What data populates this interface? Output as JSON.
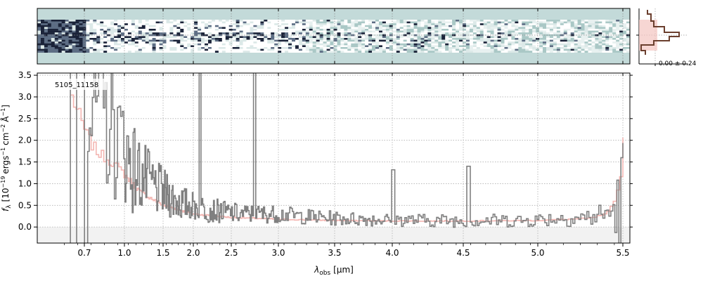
{
  "chart_data": [
    {
      "type": "heatmap",
      "panel": "2d-spectrum",
      "colors": {
        "background": "#c3dad9",
        "dark": "#1a2238",
        "light": "#ffffff"
      }
    },
    {
      "type": "line",
      "panel": "cross-dispersion-profile",
      "label": "-0.00 ± 0.24",
      "colors": {
        "profile": "#6b3f2e",
        "fill": "#f4c4c0"
      }
    },
    {
      "type": "line",
      "panel": "1d-spectrum",
      "object_label": "5105_11158",
      "xlabel_main": "λ",
      "xlabel_sub": "obs",
      "xlabel_unit": "[μm]",
      "ylabel_main": "f",
      "ylabel_sub": "λ",
      "ylabel_pre": "[10",
      "ylabel_exp1": "−19",
      "ylabel_mid": "ergs",
      "ylabel_exp2": "−1",
      "ylabel_cm": "cm",
      "ylabel_exp3": "−2",
      "ylabel_A": "Å",
      "ylabel_exp4": "−1",
      "ylabel_post": "]",
      "xlim": [
        0.5,
        5.52
      ],
      "ylim": [
        -0.37,
        3.55
      ],
      "x_scale": "nonlinear",
      "xticks": [
        0.7,
        1.0,
        1.5,
        2.0,
        2.5,
        3.0,
        3.5,
        4.0,
        4.5,
        5.0,
        5.5
      ],
      "xtick_labels": [
        "0.7",
        "1.0",
        "1.5",
        "2.0",
        "2.5",
        "3.0",
        "3.5",
        "4.0",
        "4.5",
        "5.0",
        "5.5"
      ],
      "yticks": [
        0.0,
        0.5,
        1.0,
        1.5,
        2.0,
        2.5,
        3.0,
        3.5
      ],
      "ytick_labels": [
        "0.0",
        "0.5",
        "1.0",
        "1.5",
        "2.0",
        "2.5",
        "3.0",
        "3.5"
      ],
      "grid": true,
      "colors": {
        "flux": "#808080",
        "error": "#f4b6b2",
        "zero_band": "#f2f2f2"
      },
      "emission_lines": [
        {
          "x": 2.08,
          "peak": 3.6
        },
        {
          "x": 2.74,
          "peak": 3.6
        },
        {
          "x": 4.0,
          "peak": 1.32
        },
        {
          "x": 4.53,
          "peak": 1.4
        }
      ],
      "series": [
        {
          "x": [
            0.72,
            0.75,
            0.8,
            0.85,
            0.9,
            0.95,
            1.0,
            1.05,
            1.1,
            1.2,
            1.3,
            1.4,
            1.5,
            1.6,
            1.7,
            1.8,
            1.9,
            2.0,
            2.2,
            2.4,
            2.6,
            2.8,
            3.0,
            3.2,
            3.5,
            3.8,
            4.0,
            4.3,
            4.6,
            4.9,
            5.1,
            5.3,
            5.4,
            5.45,
            5.5
          ],
          "values": [
            3.3,
            2.9,
            2.7,
            2.5,
            2.3,
            2.0,
            1.8,
            1.6,
            1.4,
            1.2,
            1.05,
            0.9,
            0.8,
            0.7,
            0.62,
            0.55,
            0.52,
            0.48,
            0.4,
            0.35,
            0.3,
            0.3,
            0.3,
            0.25,
            0.2,
            0.18,
            0.17,
            0.15,
            0.15,
            0.15,
            0.2,
            0.22,
            0.3,
            0.4,
            0.35
          ]
        },
        {
          "x": [
            0.6,
            0.65,
            0.7,
            0.75,
            0.8,
            0.9,
            1.0,
            1.2,
            1.5,
            2.0,
            2.5,
            3.0,
            3.5,
            4.0,
            4.5,
            5.0,
            5.3,
            5.4,
            5.45,
            5.48,
            5.5
          ],
          "values": [
            3.0,
            2.6,
            2.2,
            1.9,
            1.7,
            1.5,
            1.2,
            0.8,
            0.5,
            0.3,
            0.22,
            0.18,
            0.15,
            0.14,
            0.14,
            0.15,
            0.2,
            0.3,
            0.6,
            1.2,
            2.0
          ]
        }
      ]
    }
  ]
}
